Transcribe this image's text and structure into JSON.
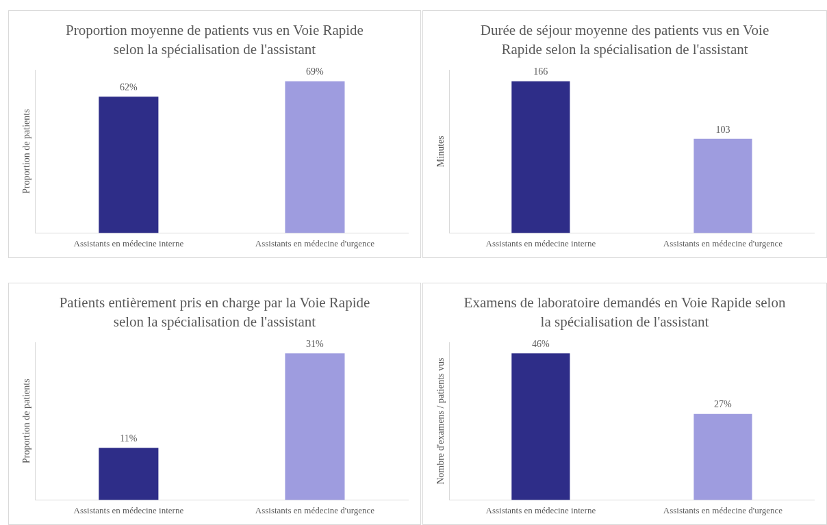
{
  "chart_data": [
    {
      "type": "bar",
      "title": "Proportion moyenne de patients vus en Voie Rapide selon la spécialisation de l'assistant",
      "ylabel": "Proportion de patients",
      "categories": [
        "Assistants en médecine interne",
        "Assistants en médecine d'urgence"
      ],
      "values": [
        62,
        69
      ],
      "value_labels": [
        "62%",
        "69%"
      ],
      "colors": [
        "#2e2d88",
        "#9e9cdf"
      ],
      "tick_labels": "x"
    },
    {
      "type": "bar",
      "title": "Durée de séjour moyenne des patients vus en Voie Rapide selon la spécialisation de l'assistant",
      "ylabel": "Minutes",
      "categories": [
        "Assistants en médecine interne",
        "Assistants en médecine d'urgence"
      ],
      "values": [
        166,
        103
      ],
      "value_labels": [
        "166",
        "103"
      ],
      "colors": [
        "#2e2d88",
        "#9e9cdf"
      ],
      "tick_labels": "x"
    },
    {
      "type": "bar",
      "title": "Patients entièrement pris en charge par la Voie Rapide selon la spécialisation de l'assistant",
      "ylabel": "Proportion de patients",
      "categories": [
        "Assistants en médecine interne",
        "Assistants en médecine d'urgence"
      ],
      "values": [
        11,
        31
      ],
      "value_labels": [
        "11%",
        "31%"
      ],
      "colors": [
        "#2e2d88",
        "#9e9cdf"
      ],
      "tick_labels": "x"
    },
    {
      "type": "bar",
      "title": "Examens de laboratoire demandés en Voie Rapide selon la spécialisation de l'assistant",
      "ylabel": "Nombre d'examens / patients vus",
      "categories": [
        "Assistants en médecine interne",
        "Assistants en médecine d'urgence"
      ],
      "values": [
        46,
        27
      ],
      "value_labels": [
        "46%",
        "27%"
      ],
      "colors": [
        "#2e2d88",
        "#9e9cdf"
      ],
      "tick_labels": "x"
    }
  ]
}
